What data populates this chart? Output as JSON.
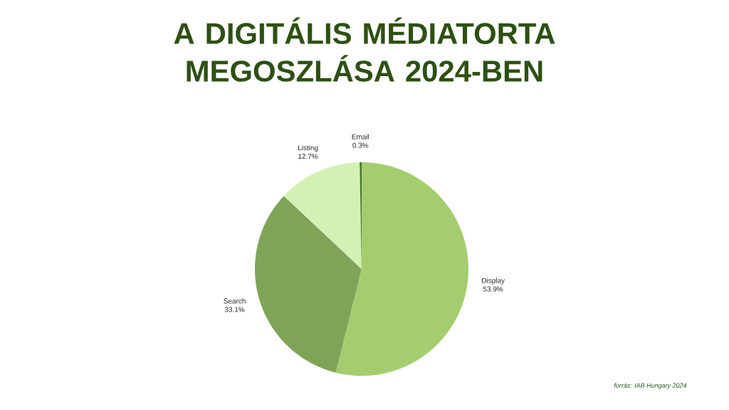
{
  "chart_data": {
    "type": "pie",
    "title": "A DIGITÁLIS MÉDIATORTA MEGOSZLÁSA 2024-BEN",
    "categories": [
      "Display",
      "Search",
      "Listing",
      "Email"
    ],
    "values": [
      53.9,
      33.1,
      12.7,
      0.3
    ],
    "value_labels": [
      "53.9%",
      "33.1%",
      "12.7%",
      "0.3%"
    ],
    "colors": [
      "#a5cd6f",
      "#80a457",
      "#d5f0b5",
      "#4a7a25"
    ],
    "annotations": [
      "forrás: IAB Hungary 2024"
    ]
  }
}
